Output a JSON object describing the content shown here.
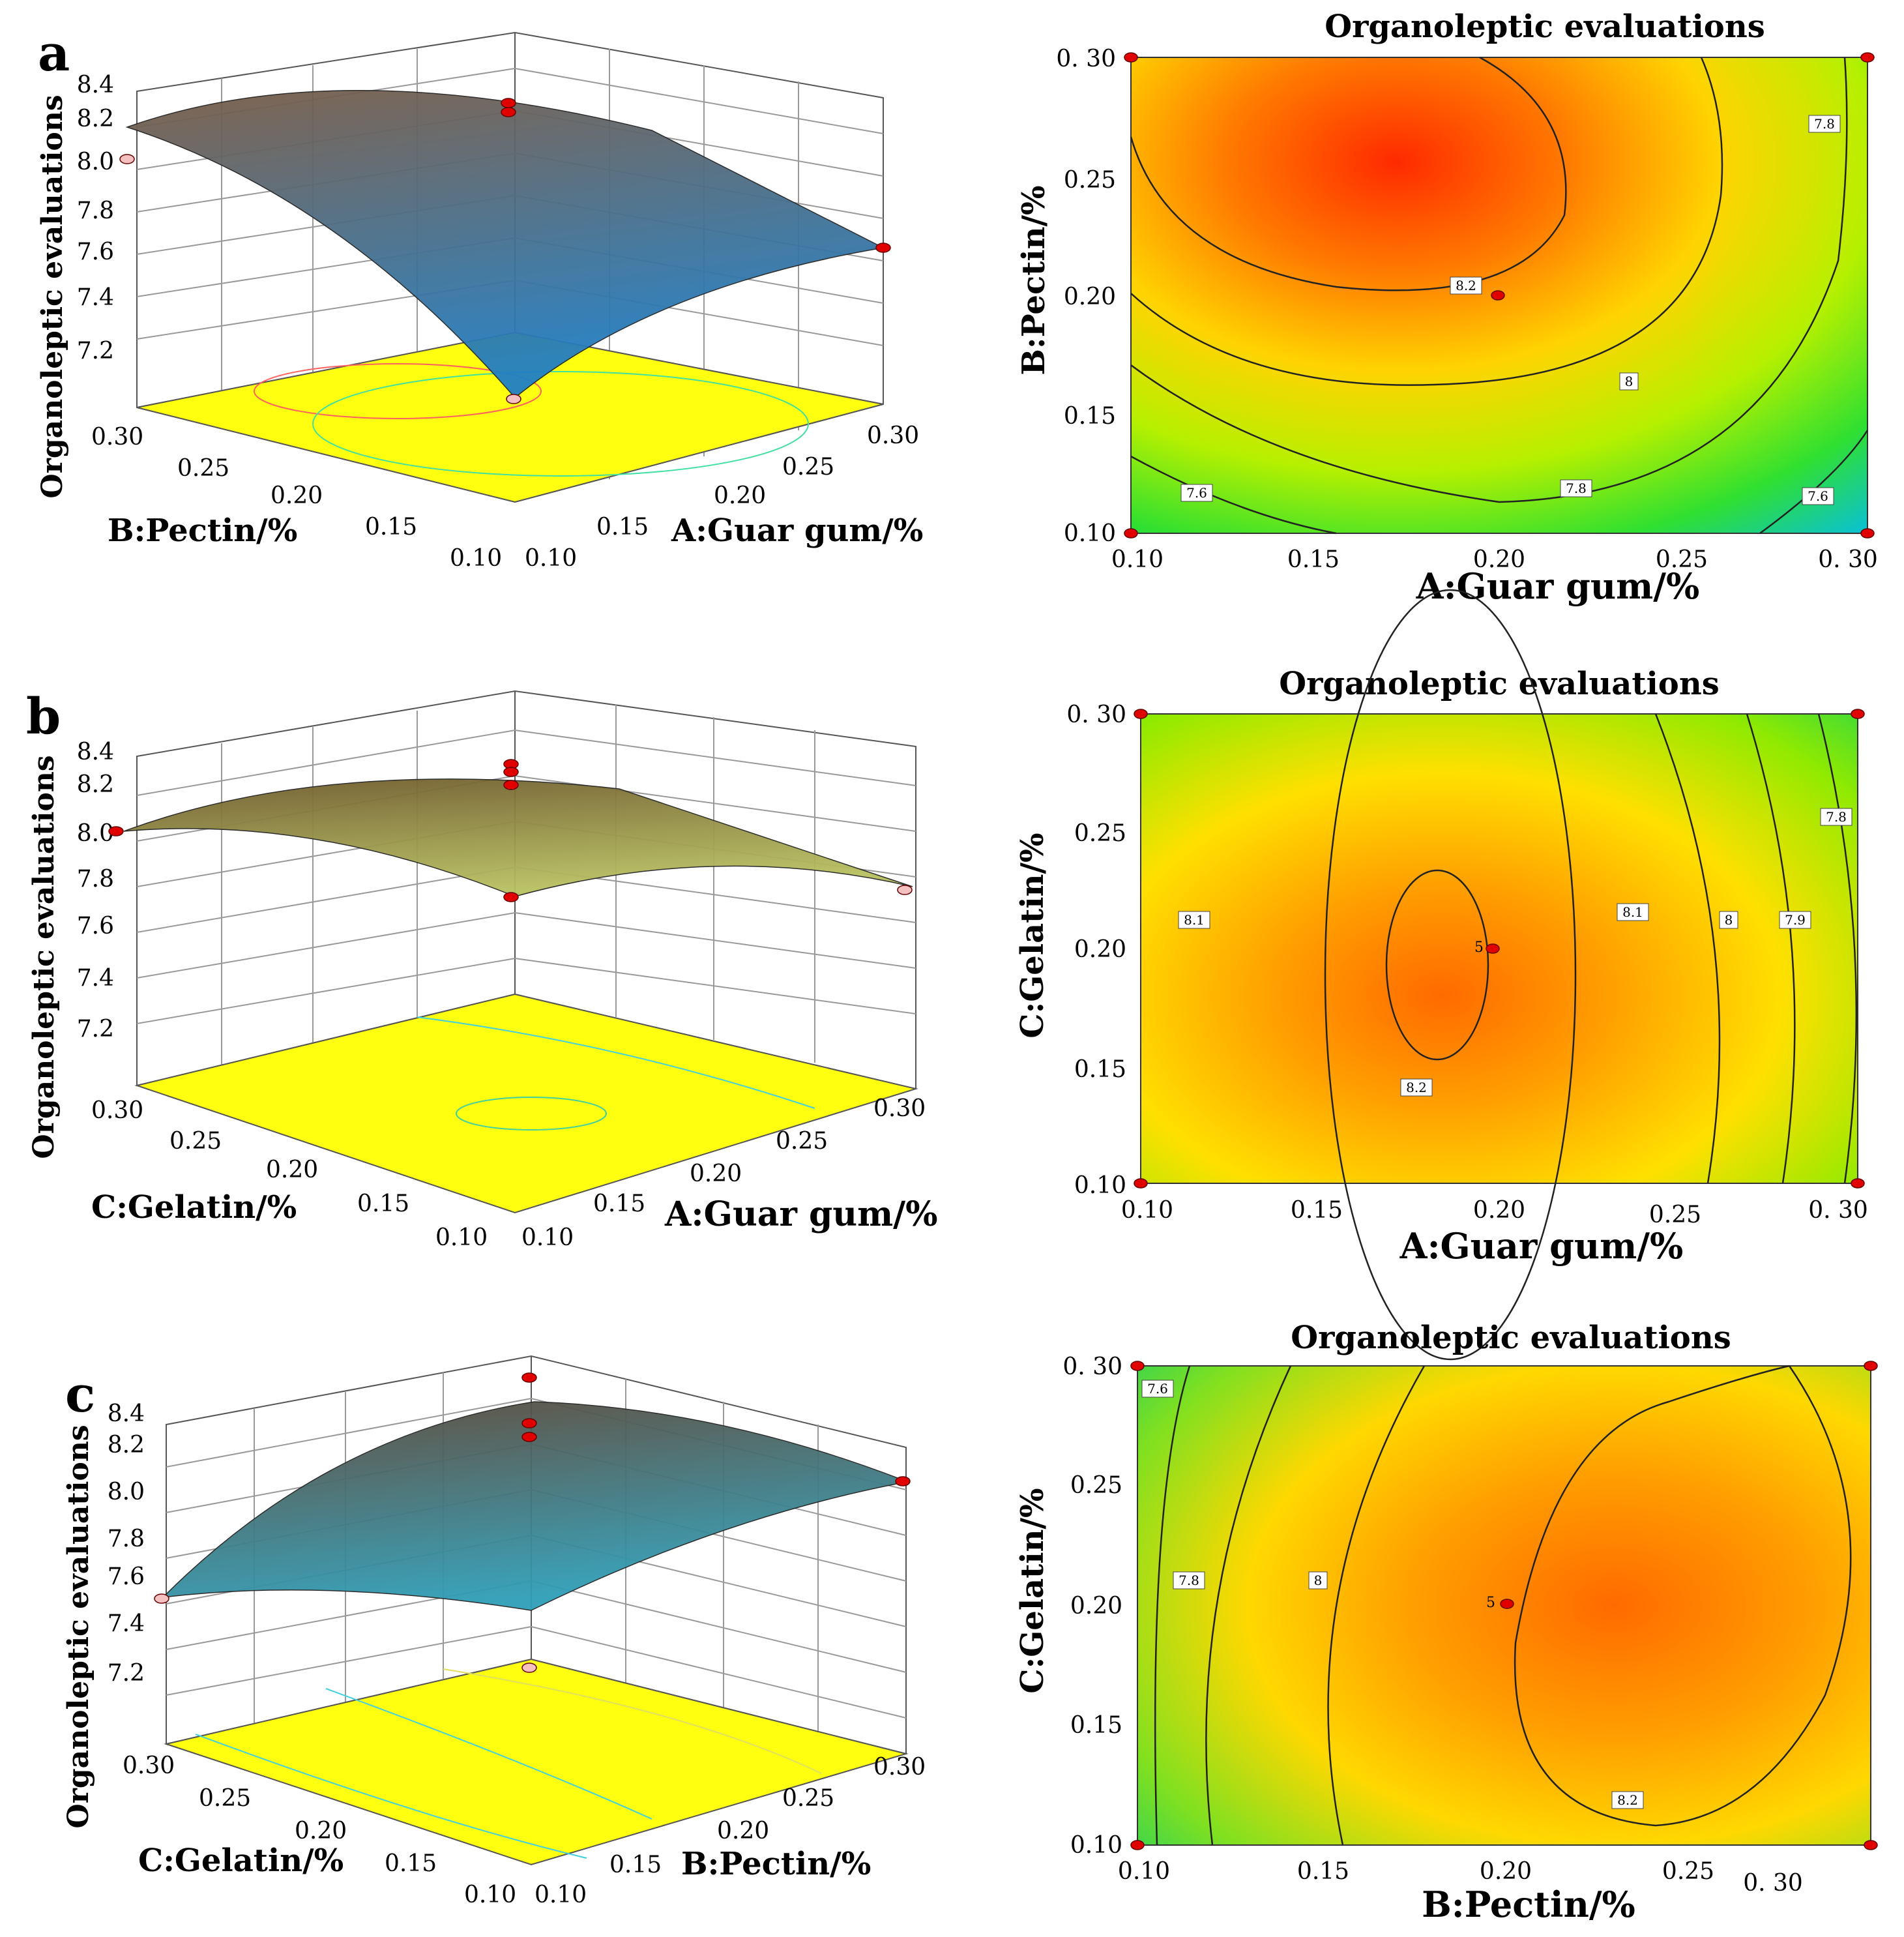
{
  "panels": [
    {
      "letter": "a",
      "surface_top": "#7a5c46",
      "surface_bottom": "#1f7fc6",
      "chart_data": {
        "type": "surface3d",
        "zlabel": "Organoleptic evaluations",
        "xlabel": "A:Guar gum/%",
        "ylabel": "B:Pectin/%",
        "z_ticks": [
          "8.4",
          "8.2",
          "8.0",
          "7.8",
          "7.6",
          "7.4",
          "7.2"
        ],
        "x_ticks": [
          "0.10",
          "0.15",
          "0.20",
          "0.25",
          "0.30"
        ],
        "y_ticks": [
          "0.30",
          "0.25",
          "0.20",
          "0.15",
          "0.10"
        ],
        "zlim": [
          7.2,
          8.4
        ],
        "corners": {
          "A0.10_B0.30": 8.15,
          "A0.30_B0.30": 8.0,
          "A0.30_B0.10": 7.55,
          "A0.10_B0.10": 7.2
        },
        "design_points": [
          8.25,
          8.05,
          8.0,
          7.6,
          7.2
        ]
      }
    },
    {
      "letter": "",
      "chart_data": {
        "type": "contour",
        "title": "Organoleptic evaluations",
        "xlabel": "A:Guar gum/%",
        "ylabel": "B:Pectin/%",
        "x_ticks": [
          "0.10",
          "0.15",
          "0.20",
          "0.25",
          "0. 30"
        ],
        "y_ticks": [
          "0. 30",
          "0.25",
          "0.20",
          "0.15",
          "0.10"
        ],
        "xlim": [
          0.1,
          0.3
        ],
        "ylim": [
          0.1,
          0.3
        ],
        "contour_labels": [
          "8.2",
          "8",
          "7.8",
          "7.8",
          "7.6",
          "7.6"
        ],
        "design_points": [
          [
            0.1,
            0.3
          ],
          [
            0.3,
            0.3
          ],
          [
            0.2,
            0.2
          ],
          [
            0.1,
            0.1
          ],
          [
            0.3,
            0.1
          ]
        ]
      }
    },
    {
      "letter": "b",
      "surface_top": "#6e5a2c",
      "surface_bottom": "#b8c060",
      "chart_data": {
        "type": "surface3d",
        "zlabel": "Organoleptic evaluations",
        "xlabel": "A:Guar gum/%",
        "ylabel": "C:Gelatin/%",
        "z_ticks": [
          "8.4",
          "8.2",
          "8.0",
          "7.8",
          "7.6",
          "7.4",
          "7.2"
        ],
        "x_ticks": [
          "0.10",
          "0.15",
          "0.20",
          "0.25",
          "0.30"
        ],
        "y_ticks": [
          "0.30",
          "0.25",
          "0.20",
          "0.15",
          "0.10"
        ],
        "zlim": [
          7.2,
          8.4
        ],
        "corners": {
          "A0.10_C0.30": 8.0,
          "A0.30_C0.30": 7.75,
          "A0.30_C0.10": 7.7,
          "A0.10_C0.10": 7.95
        },
        "design_points": [
          8.3,
          8.25,
          8.2,
          8.0,
          7.7,
          7.65
        ]
      }
    },
    {
      "letter": "",
      "chart_data": {
        "type": "contour",
        "title": "Organoleptic evaluations",
        "xlabel": "A:Guar gum/%",
        "ylabel": "C:Gelatin/%",
        "x_ticks": [
          "0.10",
          "0.15",
          "0.20",
          "0.25",
          "0. 30"
        ],
        "y_ticks": [
          "0. 30",
          "0.25",
          "0.20",
          "0.15",
          "0.10"
        ],
        "xlim": [
          0.1,
          0.3
        ],
        "ylim": [
          0.1,
          0.3
        ],
        "contour_labels": [
          "8.1",
          "8.1",
          "8.2",
          "8",
          "7.9",
          "7.8"
        ],
        "center_marker": "5",
        "design_points": [
          [
            0.1,
            0.3
          ],
          [
            0.3,
            0.3
          ],
          [
            0.2,
            0.2
          ],
          [
            0.1,
            0.1
          ],
          [
            0.3,
            0.1
          ]
        ]
      }
    },
    {
      "letter": "c",
      "surface_top": "#5c4636",
      "surface_bottom": "#2f9fb8",
      "chart_data": {
        "type": "surface3d",
        "zlabel": "Organoleptic evaluations",
        "xlabel": "B:Pectin/%",
        "ylabel": "C:Gelatin/%",
        "z_ticks": [
          "8.4",
          "8.2",
          "8.0",
          "7.8",
          "7.6",
          "7.4",
          "7.2"
        ],
        "x_ticks": [
          "0.10",
          "0.15",
          "0.20",
          "0.25",
          "0.30"
        ],
        "y_ticks": [
          "0.30",
          "0.25",
          "0.20",
          "0.15",
          "0.10"
        ],
        "zlim": [
          7.2,
          8.4
        ],
        "corners": {
          "B0.10_C0.30": 7.5,
          "B0.30_C0.30": 8.1,
          "B0.30_C0.10": 8.05,
          "B0.10_C0.10": 7.45
        },
        "design_points": [
          8.35,
          8.25,
          8.2,
          8.05,
          7.5,
          7.45
        ]
      }
    },
    {
      "letter": "",
      "chart_data": {
        "type": "contour",
        "title": "Organoleptic evaluations",
        "xlabel": "B:Pectin/%",
        "ylabel": "C:Gelatin/%",
        "x_ticks": [
          "0.10",
          "0.15",
          "0.20",
          "0.25",
          "0. 30"
        ],
        "y_ticks": [
          "0. 30",
          "0.25",
          "0.20",
          "0.15",
          "0.10"
        ],
        "xlim": [
          0.1,
          0.3
        ],
        "ylim": [
          0.1,
          0.3
        ],
        "contour_labels": [
          "7.6",
          "7.8",
          "8",
          "8.2"
        ],
        "center_marker": "5",
        "design_points": [
          [
            0.1,
            0.3
          ],
          [
            0.3,
            0.3
          ],
          [
            0.2,
            0.2
          ],
          [
            0.1,
            0.1
          ],
          [
            0.3,
            0.1
          ]
        ]
      }
    }
  ]
}
